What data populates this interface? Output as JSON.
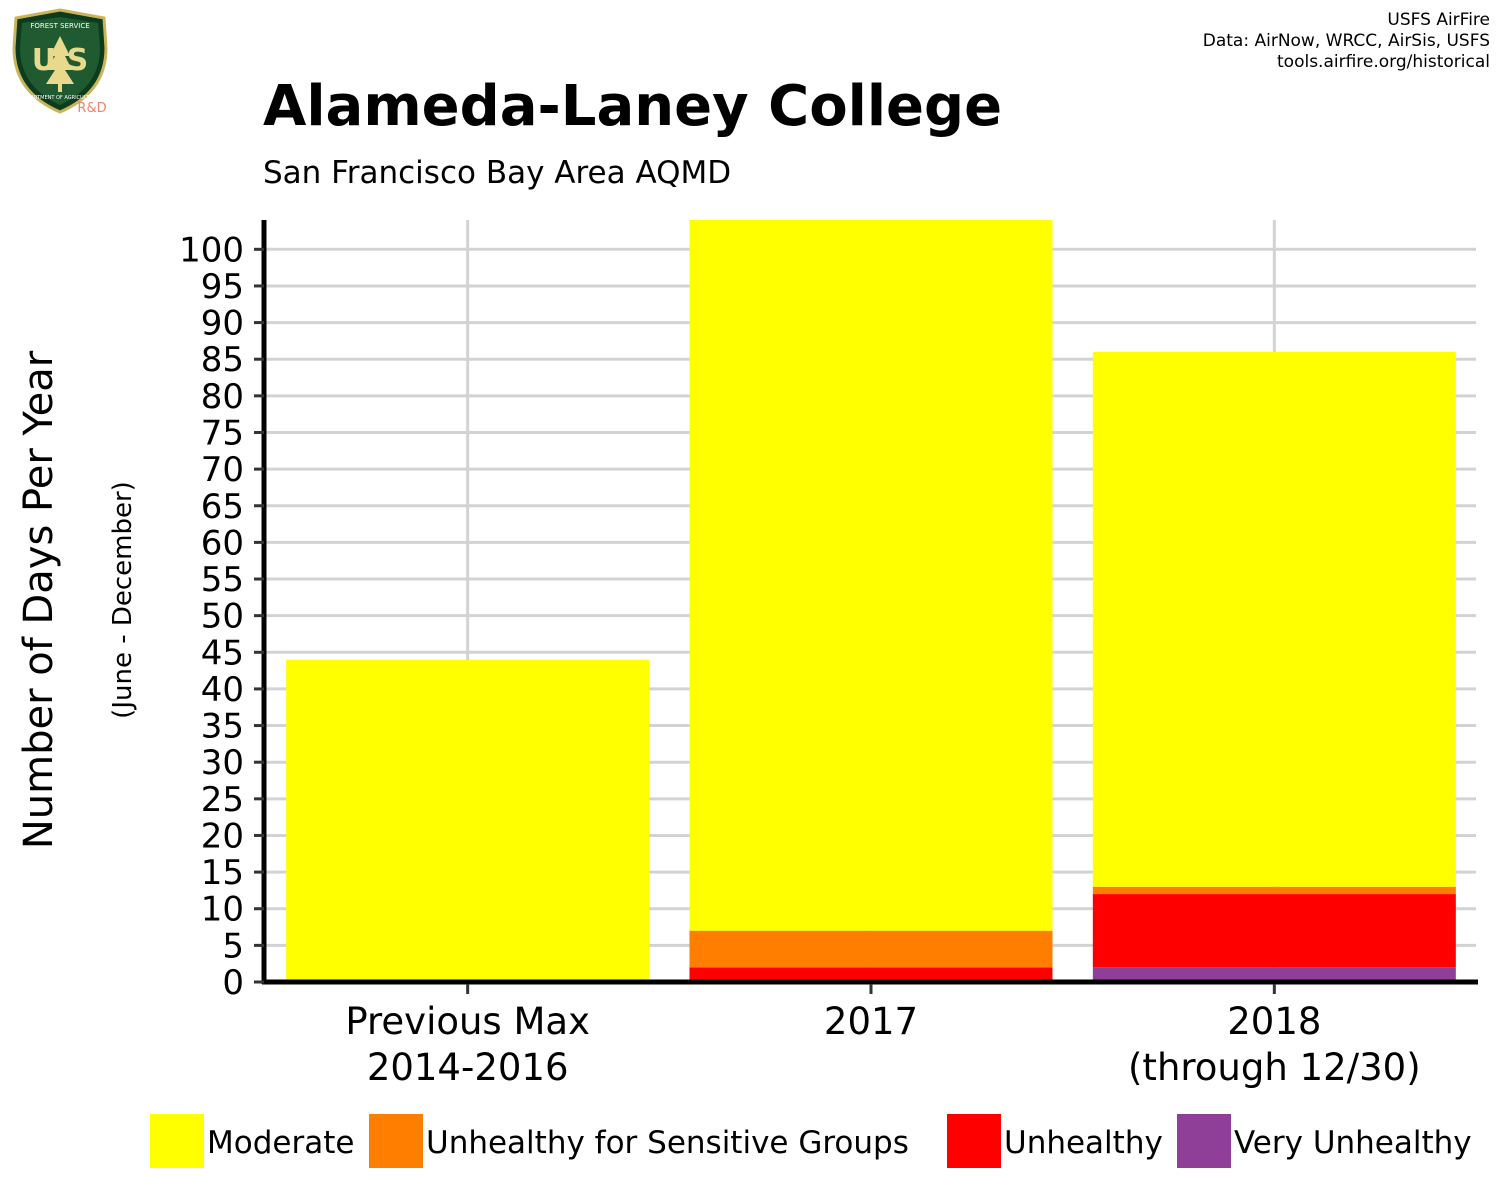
{
  "logo": {
    "top_text": "FOREST SERVICE",
    "letters": "U S",
    "bottom_text": "DEPARTMENT OF AGRICULTURE",
    "rd": "R&D"
  },
  "credits": [
    "USFS AirFire",
    "Data: AirNow, WRCC, AirSis, USFS",
    "tools.airfire.org/historical"
  ],
  "colors": {
    "Moderate": "#ffff00",
    "Unhealthy for Sensitive Groups": "#ff7e00",
    "Unhealthy": "#ff0000",
    "Very Unhealthy": "#8f3f97",
    "grid": "#d3d3d3"
  },
  "chart_data": {
    "type": "bar",
    "stacked": true,
    "title": "Alameda-Laney College",
    "subtitle": "San Francisco Bay Area AQMD",
    "xlabel": "",
    "ylabel": "Number of Days Per Year",
    "ylabel_sub": "(June - December)",
    "ylim": [
      0,
      104
    ],
    "yticks": [
      0,
      5,
      10,
      15,
      20,
      25,
      30,
      35,
      40,
      45,
      50,
      55,
      60,
      65,
      70,
      75,
      80,
      85,
      90,
      95,
      100
    ],
    "grid": true,
    "legend_position": "bottom",
    "categories": [
      [
        "Previous Max",
        "2014-2016"
      ],
      [
        "2017"
      ],
      [
        "2018",
        "(through 12/30)"
      ]
    ],
    "series": [
      {
        "name": "Very Unhealthy",
        "values": [
          0,
          0,
          2
        ]
      },
      {
        "name": "Unhealthy",
        "values": [
          0,
          2,
          10
        ]
      },
      {
        "name": "Unhealthy for Sensitive Groups",
        "values": [
          0,
          5,
          1
        ]
      },
      {
        "name": "Moderate",
        "values": [
          44,
          97,
          73
        ]
      }
    ],
    "legend": [
      "Moderate",
      "Unhealthy for Sensitive Groups",
      "Unhealthy",
      "Very Unhealthy"
    ]
  }
}
